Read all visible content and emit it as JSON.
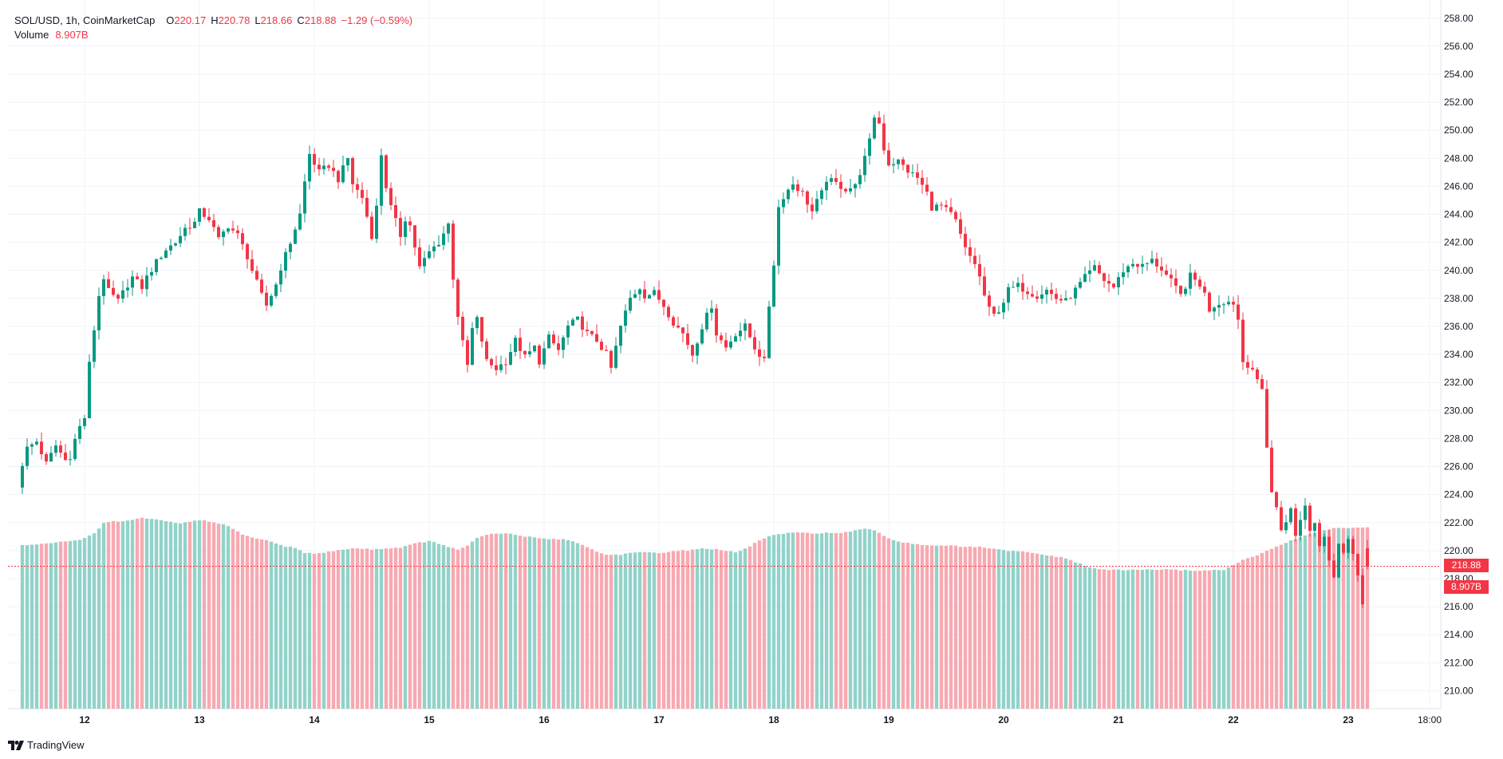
{
  "legend": {
    "symbol": "SOL/USD, 1h, CoinMarketCap",
    "open_label": "O",
    "open": "220.17",
    "high_label": "H",
    "high": "220.78",
    "low_label": "L",
    "low": "218.66",
    "close_label": "C",
    "close": "218.88",
    "change": "−1.29 (−0.59%)",
    "volume_label": "Volume",
    "volume": "8.907B"
  },
  "price_tag": "218.88",
  "volume_tag": "8.907B",
  "branding": "TradingView",
  "colors": {
    "up": "#089981",
    "down": "#f23645",
    "up_volume": "#92d2c9",
    "down_volume": "#f7a9b1",
    "grid": "#f0f3fa",
    "axis_text": "#131722"
  },
  "chart_data": {
    "type": "candlestick",
    "title": "SOL/USD, 1h, CoinMarketCap",
    "price_axis": {
      "ylim": [
        209,
        258.5
      ],
      "ticks": [
        "258.00",
        "256.00",
        "254.00",
        "252.00",
        "250.00",
        "248.00",
        "246.00",
        "244.00",
        "242.00",
        "240.00",
        "238.00",
        "236.00",
        "234.00",
        "232.00",
        "230.00",
        "228.00",
        "226.00",
        "224.00",
        "222.00",
        "220.00",
        "218.00",
        "216.00",
        "214.00",
        "212.00",
        "210.00"
      ]
    },
    "time_axis": {
      "start_hour": -13,
      "end_hour": 268,
      "ticks": [
        {
          "hour": 0,
          "label": "12"
        },
        {
          "hour": 24,
          "label": "13"
        },
        {
          "hour": 48,
          "label": "14"
        },
        {
          "hour": 72,
          "label": "15"
        },
        {
          "hour": 96,
          "label": "16"
        },
        {
          "hour": 120,
          "label": "17"
        },
        {
          "hour": 144,
          "label": "18"
        },
        {
          "hour": 168,
          "label": "19"
        },
        {
          "hour": 192,
          "label": "20"
        },
        {
          "hour": 216,
          "label": "21"
        },
        {
          "hour": 240,
          "label": "22"
        },
        {
          "hour": 264,
          "label": "23"
        },
        {
          "hour": 281,
          "label": "18:00"
        }
      ]
    },
    "price_path": [
      [
        -15.5,
        223.3
      ],
      [
        -14,
        224.5
      ],
      [
        -13,
        226.2
      ],
      [
        -12,
        227.3
      ],
      [
        -10,
        227.8
      ],
      [
        -8,
        226.2
      ],
      [
        -6,
        227.5
      ],
      [
        -3.5,
        226.2
      ],
      [
        -1.5,
        228.5
      ],
      [
        0,
        229.5
      ],
      [
        1,
        233.3
      ],
      [
        2,
        235.8
      ],
      [
        3,
        238.2
      ],
      [
        4,
        239.5
      ],
      [
        5,
        238.5
      ],
      [
        7,
        237.8
      ],
      [
        9,
        239
      ],
      [
        10,
        239.5
      ],
      [
        12,
        238.8
      ],
      [
        13,
        239.5
      ],
      [
        15,
        240.6
      ],
      [
        17,
        241.5
      ],
      [
        19,
        242
      ],
      [
        21,
        243
      ],
      [
        23,
        243.4
      ],
      [
        24,
        244.2
      ],
      [
        26,
        243.7
      ],
      [
        28,
        242.2
      ],
      [
        30,
        243.2
      ],
      [
        32,
        242.5
      ],
      [
        34,
        241
      ],
      [
        35,
        240
      ],
      [
        37,
        238.2
      ],
      [
        38,
        237.5
      ],
      [
        40,
        239
      ],
      [
        41,
        240.2
      ],
      [
        43,
        242
      ],
      [
        45,
        244
      ],
      [
        46,
        246.3
      ],
      [
        47,
        248.3
      ],
      [
        49,
        247
      ],
      [
        51,
        247.5
      ],
      [
        53,
        246.5
      ],
      [
        55,
        248
      ],
      [
        56,
        246.2
      ],
      [
        58,
        245.2
      ],
      [
        60,
        242.5
      ],
      [
        61,
        244.5
      ],
      [
        62,
        248.3
      ],
      [
        63,
        246
      ],
      [
        64,
        244.5
      ],
      [
        66,
        242.5
      ],
      [
        67,
        243.7
      ],
      [
        68,
        243.2
      ],
      [
        70,
        240.2
      ],
      [
        72,
        241.3
      ],
      [
        74,
        242
      ],
      [
        76,
        243.3
      ],
      [
        77,
        239.5
      ],
      [
        78,
        236.8
      ],
      [
        79,
        234.8
      ],
      [
        80,
        233.2
      ],
      [
        81,
        235.8
      ],
      [
        82,
        236.5
      ],
      [
        83,
        235
      ],
      [
        84,
        233.5
      ],
      [
        86,
        233
      ],
      [
        88,
        233.5
      ],
      [
        90,
        235
      ],
      [
        92,
        233.8
      ],
      [
        94,
        234.5
      ],
      [
        95,
        233.5
      ],
      [
        97,
        235.2
      ],
      [
        99,
        234.3
      ],
      [
        101,
        236
      ],
      [
        103,
        236.5
      ],
      [
        105,
        235.5
      ],
      [
        107,
        235
      ],
      [
        109,
        234
      ],
      [
        110,
        233
      ],
      [
        112,
        236
      ],
      [
        114,
        238
      ],
      [
        116,
        238.8
      ],
      [
        117,
        238.2
      ],
      [
        119,
        238.4
      ],
      [
        121,
        237.5
      ],
      [
        123,
        236.3
      ],
      [
        125,
        235.5
      ],
      [
        127,
        234
      ],
      [
        129,
        236
      ],
      [
        131,
        237.5
      ],
      [
        132,
        235.5
      ],
      [
        134,
        234.5
      ],
      [
        136,
        235.5
      ],
      [
        138,
        236
      ],
      [
        140,
        234.5
      ],
      [
        142,
        233.5
      ],
      [
        143,
        237.5
      ],
      [
        144,
        240.5
      ],
      [
        145,
        244.5
      ],
      [
        146,
        245.3
      ],
      [
        148,
        246.2
      ],
      [
        150,
        245.5
      ],
      [
        152,
        244.2
      ],
      [
        153,
        244.9
      ],
      [
        154,
        245.5
      ],
      [
        155,
        246.5
      ],
      [
        157,
        246.2
      ],
      [
        159,
        245.8
      ],
      [
        161,
        246
      ],
      [
        163,
        248
      ],
      [
        164,
        249.2
      ],
      [
        165,
        251
      ],
      [
        166,
        250.5
      ],
      [
        167,
        248.7
      ],
      [
        168,
        247.6
      ],
      [
        170,
        247.8
      ],
      [
        172,
        247.1
      ],
      [
        174,
        246.6
      ],
      [
        176,
        245.5
      ],
      [
        177,
        244.5
      ],
      [
        179,
        244.6
      ],
      [
        181,
        244
      ],
      [
        182,
        243.5
      ],
      [
        184,
        241.5
      ],
      [
        186,
        240.5
      ],
      [
        187,
        239.5
      ],
      [
        188,
        238.2
      ],
      [
        189,
        237.2
      ],
      [
        190,
        236.8
      ],
      [
        191,
        237.2
      ],
      [
        192,
        237.8
      ],
      [
        193,
        238.6
      ],
      [
        195,
        238.9
      ],
      [
        197,
        238.5
      ],
      [
        199,
        238.2
      ],
      [
        201,
        238.6
      ],
      [
        203,
        238
      ],
      [
        205,
        237.8
      ],
      [
        207,
        238.6
      ],
      [
        209,
        239.5
      ],
      [
        211,
        240.2
      ],
      [
        213,
        239.3
      ],
      [
        215,
        238.8
      ],
      [
        217,
        240
      ],
      [
        219,
        240.5
      ],
      [
        221,
        240.3
      ],
      [
        223,
        240.7
      ],
      [
        225,
        240.1
      ],
      [
        227,
        239.2
      ],
      [
        229,
        238.2
      ],
      [
        231,
        239.6
      ],
      [
        233,
        239
      ],
      [
        234,
        238.3
      ],
      [
        235,
        237.2
      ],
      [
        236,
        237.5
      ],
      [
        238,
        237.8
      ],
      [
        240,
        237.7
      ],
      [
        241,
        236.5
      ],
      [
        242,
        233.5
      ],
      [
        243,
        233.3
      ],
      [
        244,
        233
      ],
      [
        245,
        232
      ],
      [
        246,
        231.5
      ],
      [
        247,
        227.5
      ],
      [
        248,
        224.2
      ],
      [
        249,
        223
      ],
      [
        250,
        221.5
      ],
      [
        251,
        222.2
      ],
      [
        252,
        222.9
      ],
      [
        253,
        221
      ],
      [
        254,
        222.3
      ],
      [
        255,
        223.2
      ],
      [
        256,
        221.5
      ],
      [
        257,
        222
      ],
      [
        258,
        220.5
      ],
      [
        259,
        221.2
      ],
      [
        260,
        219.4
      ],
      [
        261,
        218.2
      ],
      [
        262,
        220.5
      ],
      [
        263,
        219.7
      ],
      [
        264,
        221
      ],
      [
        265,
        220
      ],
      [
        266,
        218.2
      ],
      [
        267,
        216.1
      ],
      [
        268,
        217
      ],
      [
        269,
        216
      ],
      [
        270,
        218.7
      ],
      [
        271,
        220
      ],
      [
        272,
        220.2
      ],
      [
        273,
        218.88
      ]
    ],
    "volume_axis": {
      "max": 9.5
    },
    "volume_path": [
      [
        -15.5,
        8.04
      ],
      [
        -12.5,
        8.12
      ],
      [
        -10,
        8.14
      ],
      [
        -8,
        8.18
      ],
      [
        -6,
        8.25
      ],
      [
        -4,
        8.3
      ],
      [
        -2,
        8.35
      ],
      [
        0,
        8.45
      ],
      [
        2,
        8.72
      ],
      [
        4,
        9.2
      ],
      [
        6,
        9.28
      ],
      [
        8,
        9.3
      ],
      [
        10,
        9.38
      ],
      [
        12,
        9.46
      ],
      [
        14,
        9.4
      ],
      [
        16,
        9.33
      ],
      [
        18,
        9.25
      ],
      [
        20,
        9.2
      ],
      [
        22,
        9.26
      ],
      [
        24,
        9.35
      ],
      [
        26,
        9.28
      ],
      [
        28,
        9.2
      ],
      [
        30,
        9.05
      ],
      [
        32,
        8.78
      ],
      [
        34,
        8.55
      ],
      [
        36,
        8.45
      ],
      [
        38,
        8.35
      ],
      [
        40,
        8.2
      ],
      [
        42,
        8.05
      ],
      [
        44,
        7.98
      ],
      [
        46,
        7.75
      ],
      [
        48,
        7.68
      ],
      [
        50,
        7.74
      ],
      [
        52,
        7.82
      ],
      [
        54,
        7.9
      ],
      [
        56,
        7.95
      ],
      [
        58,
        7.94
      ],
      [
        60,
        7.9
      ],
      [
        62,
        7.94
      ],
      [
        64,
        7.96
      ],
      [
        66,
        8.0
      ],
      [
        68,
        8.12
      ],
      [
        70,
        8.25
      ],
      [
        72,
        8.3
      ],
      [
        74,
        8.2
      ],
      [
        76,
        8.0
      ],
      [
        78,
        7.9
      ],
      [
        80,
        8.1
      ],
      [
        82,
        8.45
      ],
      [
        84,
        8.62
      ],
      [
        86,
        8.68
      ],
      [
        88,
        8.7
      ],
      [
        90,
        8.62
      ],
      [
        92,
        8.55
      ],
      [
        94,
        8.48
      ],
      [
        96,
        8.44
      ],
      [
        98,
        8.42
      ],
      [
        100,
        8.4
      ],
      [
        102,
        8.32
      ],
      [
        104,
        8.12
      ],
      [
        106,
        7.9
      ],
      [
        108,
        7.7
      ],
      [
        110,
        7.62
      ],
      [
        112,
        7.65
      ],
      [
        114,
        7.72
      ],
      [
        116,
        7.74
      ],
      [
        118,
        7.74
      ],
      [
        120,
        7.74
      ],
      [
        122,
        7.78
      ],
      [
        124,
        7.82
      ],
      [
        126,
        7.86
      ],
      [
        128,
        7.92
      ],
      [
        130,
        7.95
      ],
      [
        132,
        7.9
      ],
      [
        134,
        7.82
      ],
      [
        136,
        7.75
      ],
      [
        138,
        7.92
      ],
      [
        140,
        8.22
      ],
      [
        142,
        8.45
      ],
      [
        144,
        8.62
      ],
      [
        146,
        8.68
      ],
      [
        148,
        8.72
      ],
      [
        150,
        8.72
      ],
      [
        152,
        8.7
      ],
      [
        154,
        8.72
      ],
      [
        156,
        8.72
      ],
      [
        158,
        8.7
      ],
      [
        160,
        8.78
      ],
      [
        162,
        8.88
      ],
      [
        164,
        8.92
      ],
      [
        166,
        8.72
      ],
      [
        168,
        8.45
      ],
      [
        170,
        8.3
      ],
      [
        172,
        8.22
      ],
      [
        174,
        8.15
      ],
      [
        176,
        8.12
      ],
      [
        178,
        8.1
      ],
      [
        180,
        8.1
      ],
      [
        182,
        8.06
      ],
      [
        184,
        8.02
      ],
      [
        186,
        8.03
      ],
      [
        188,
        8.0
      ],
      [
        190,
        7.92
      ],
      [
        192,
        7.85
      ],
      [
        194,
        7.82
      ],
      [
        196,
        7.78
      ],
      [
        198,
        7.72
      ],
      [
        200,
        7.65
      ],
      [
        202,
        7.58
      ],
      [
        204,
        7.5
      ],
      [
        206,
        7.38
      ],
      [
        208,
        7.18
      ],
      [
        210,
        7.0
      ],
      [
        212,
        6.92
      ],
      [
        214,
        6.9
      ],
      [
        216,
        6.88
      ],
      [
        218,
        6.88
      ],
      [
        220,
        6.9
      ],
      [
        222,
        6.9
      ],
      [
        224,
        6.91
      ],
      [
        226,
        6.9
      ],
      [
        228,
        6.88
      ],
      [
        230,
        6.87
      ],
      [
        232,
        6.86
      ],
      [
        234,
        6.85
      ],
      [
        236,
        6.88
      ],
      [
        238,
        6.9
      ],
      [
        240,
        7.1
      ],
      [
        242,
        7.4
      ],
      [
        244,
        7.52
      ],
      [
        246,
        7.7
      ],
      [
        248,
        7.95
      ],
      [
        250,
        8.15
      ],
      [
        252,
        8.32
      ],
      [
        254,
        8.52
      ],
      [
        256,
        8.68
      ],
      [
        258,
        8.8
      ],
      [
        260,
        8.9
      ],
      [
        262,
        8.96
      ],
      [
        264,
        8.98
      ],
      [
        266,
        8.99
      ],
      [
        268,
        9.0
      ],
      [
        270,
        9.02
      ],
      [
        271,
        8.85
      ],
      [
        273,
        8.8
      ]
    ],
    "last_volume": "8.907B"
  }
}
